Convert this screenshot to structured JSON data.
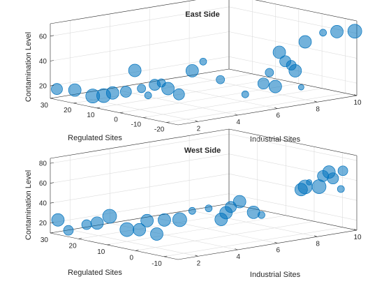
{
  "colors": {
    "bubble_fill": "#0072bd",
    "bubble_edge": "#0072bd",
    "grid": "#dcdcdc",
    "axis": "#262626"
  },
  "chart_data": [
    {
      "type": "scatter",
      "subtype": "bubble3d",
      "title": "East Side",
      "xlabel": "Industrial Sites",
      "ylabel": "Regulated Sites",
      "zlabel": "Contamination Level",
      "xlim": [
        1,
        10
      ],
      "ylim": [
        -25,
        30
      ],
      "zlim": [
        10,
        70
      ],
      "xticks": [
        2,
        4,
        6,
        8,
        10
      ],
      "yticks": [
        -20,
        -10,
        0,
        10,
        20,
        30
      ],
      "zticks": [
        20,
        40,
        60
      ],
      "grid": true,
      "points": [
        {
          "x": 1.1,
          "y": 28,
          "z": 18,
          "size": 8
        },
        {
          "x": 1.3,
          "y": 22,
          "z": 19,
          "size": 9
        },
        {
          "x": 1.5,
          "y": 16,
          "z": 16,
          "size": 10
        },
        {
          "x": 1.7,
          "y": 13,
          "z": 17,
          "size": 10
        },
        {
          "x": 1.8,
          "y": 10,
          "z": 20,
          "size": 9
        },
        {
          "x": 2.0,
          "y": 6,
          "z": 22,
          "size": 8
        },
        {
          "x": 2.1,
          "y": 3,
          "z": 40,
          "size": 9
        },
        {
          "x": 2.2,
          "y": 1,
          "z": 26,
          "size": 6
        },
        {
          "x": 2.3,
          "y": -1,
          "z": 21,
          "size": 5
        },
        {
          "x": 2.4,
          "y": -3,
          "z": 30,
          "size": 8
        },
        {
          "x": 2.5,
          "y": -5,
          "z": 32,
          "size": 6
        },
        {
          "x": 2.6,
          "y": -7,
          "z": 28,
          "size": 9
        },
        {
          "x": 2.8,
          "y": -10,
          "z": 24,
          "size": 8
        },
        {
          "x": 3.0,
          "y": -14,
          "z": 44,
          "size": 9
        },
        {
          "x": 3.2,
          "y": -17,
          "z": 52,
          "size": 5
        },
        {
          "x": 3.6,
          "y": -21,
          "z": 38,
          "size": 6
        },
        {
          "x": 4.5,
          "y": -24,
          "z": 25,
          "size": 5
        },
        {
          "x": 5.3,
          "y": -25,
          "z": 32,
          "size": 8
        },
        {
          "x": 5.6,
          "y": -25,
          "z": 40,
          "size": 6
        },
        {
          "x": 5.9,
          "y": -25,
          "z": 28,
          "size": 9
        },
        {
          "x": 6.1,
          "y": -25,
          "z": 55,
          "size": 9
        },
        {
          "x": 6.4,
          "y": -25,
          "z": 47,
          "size": 8
        },
        {
          "x": 6.7,
          "y": -25,
          "z": 43,
          "size": 7
        },
        {
          "x": 6.9,
          "y": -25,
          "z": 38,
          "size": 9
        },
        {
          "x": 7.2,
          "y": -25,
          "z": 24,
          "size": 4
        },
        {
          "x": 7.4,
          "y": -25,
          "z": 60,
          "size": 9
        },
        {
          "x": 8.3,
          "y": -25,
          "z": 65,
          "size": 5
        },
        {
          "x": 9.0,
          "y": -25,
          "z": 64,
          "size": 9
        },
        {
          "x": 9.9,
          "y": -25,
          "z": 62,
          "size": 10
        }
      ]
    },
    {
      "type": "scatter",
      "subtype": "bubble3d",
      "title": "West Side",
      "xlabel": "Industrial Sites",
      "ylabel": "Regulated Sites",
      "zlabel": "Contamination Level",
      "xlim": [
        1,
        10
      ],
      "ylim": [
        -15,
        30
      ],
      "zlim": [
        10,
        85
      ],
      "xticks": [
        2,
        4,
        6,
        8,
        10
      ],
      "yticks": [
        -10,
        0,
        10,
        20,
        30
      ],
      "zticks": [
        20,
        40,
        60,
        80
      ],
      "grid": true,
      "points": [
        {
          "x": 1.1,
          "y": 28,
          "z": 24,
          "size": 9
        },
        {
          "x": 1.2,
          "y": 25,
          "z": 15,
          "size": 7
        },
        {
          "x": 1.4,
          "y": 20,
          "z": 23,
          "size": 7
        },
        {
          "x": 1.5,
          "y": 17,
          "z": 26,
          "size": 9
        },
        {
          "x": 1.7,
          "y": 14,
          "z": 34,
          "size": 10
        },
        {
          "x": 2.0,
          "y": 10,
          "z": 22,
          "size": 10
        },
        {
          "x": 2.2,
          "y": 7,
          "z": 23,
          "size": 9
        },
        {
          "x": 2.3,
          "y": 5,
          "z": 33,
          "size": 9
        },
        {
          "x": 2.5,
          "y": 3,
          "z": 20,
          "size": 9
        },
        {
          "x": 2.6,
          "y": 1,
          "z": 35,
          "size": 9
        },
        {
          "x": 2.8,
          "y": -3,
          "z": 37,
          "size": 10
        },
        {
          "x": 3.0,
          "y": -6,
          "z": 47,
          "size": 5
        },
        {
          "x": 3.4,
          "y": -9,
          "z": 50,
          "size": 5
        },
        {
          "x": 3.6,
          "y": -12,
          "z": 40,
          "size": 9
        },
        {
          "x": 3.7,
          "y": -13,
          "z": 47,
          "size": 9
        },
        {
          "x": 3.8,
          "y": -14,
          "z": 53,
          "size": 8
        },
        {
          "x": 4.1,
          "y": -15,
          "z": 58,
          "size": 9
        },
        {
          "x": 4.8,
          "y": -15,
          "z": 45,
          "size": 9
        },
        {
          "x": 5.2,
          "y": -15,
          "z": 41,
          "size": 5
        },
        {
          "x": 7.2,
          "y": -15,
          "z": 60,
          "size": 9
        },
        {
          "x": 7.4,
          "y": -15,
          "z": 62,
          "size": 10
        },
        {
          "x": 7.6,
          "y": -15,
          "z": 66,
          "size": 4
        },
        {
          "x": 8.1,
          "y": -15,
          "z": 60,
          "size": 10
        },
        {
          "x": 8.3,
          "y": -15,
          "z": 70,
          "size": 8
        },
        {
          "x": 8.6,
          "y": -15,
          "z": 73,
          "size": 9
        },
        {
          "x": 8.8,
          "y": -15,
          "z": 66,
          "size": 8
        },
        {
          "x": 9.3,
          "y": -15,
          "z": 72,
          "size": 7
        },
        {
          "x": 9.2,
          "y": -15,
          "z": 54,
          "size": 5
        }
      ]
    }
  ]
}
